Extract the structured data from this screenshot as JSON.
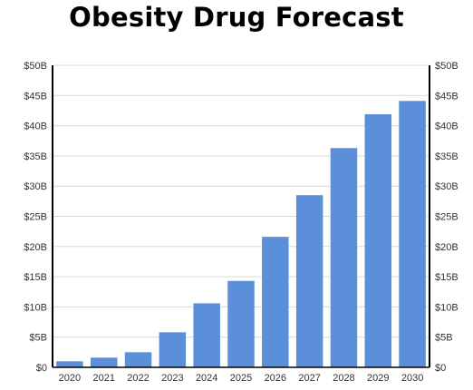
{
  "chart_data": {
    "type": "bar",
    "title": "Obesity Drug Forecast",
    "xlabel": "",
    "ylabel": "",
    "categories": [
      "2020",
      "2021",
      "2022",
      "2023",
      "2024",
      "2025",
      "2026",
      "2027",
      "2028",
      "2029",
      "2030"
    ],
    "values": [
      1.0,
      1.6,
      2.5,
      5.8,
      10.6,
      14.3,
      21.6,
      28.5,
      36.3,
      41.9,
      44.1
    ],
    "ylim": [
      0,
      50
    ],
    "yticks": [
      "$0",
      "$5B",
      "$10B",
      "$15B",
      "$20B",
      "$25B",
      "$30B",
      "$35B",
      "$40B",
      "$45B",
      "$50B"
    ],
    "y_axis_both_sides": true,
    "grid": "horizontal",
    "bar_color": "#5b8fd9"
  }
}
